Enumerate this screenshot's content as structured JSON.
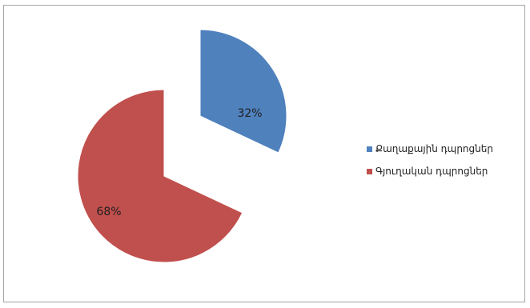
{
  "chart_data": {
    "type": "pie",
    "exploded": true,
    "categories": [
      "Քաղաքային դպրոցներ",
      "Գյուղական դպրոցներ"
    ],
    "values": [
      32,
      68
    ],
    "data_labels": [
      "32%",
      "68%"
    ],
    "colors": [
      "#4f81bd",
      "#c0504d"
    ],
    "legend_position": "right",
    "title": "",
    "start_angle_deg": 0
  }
}
